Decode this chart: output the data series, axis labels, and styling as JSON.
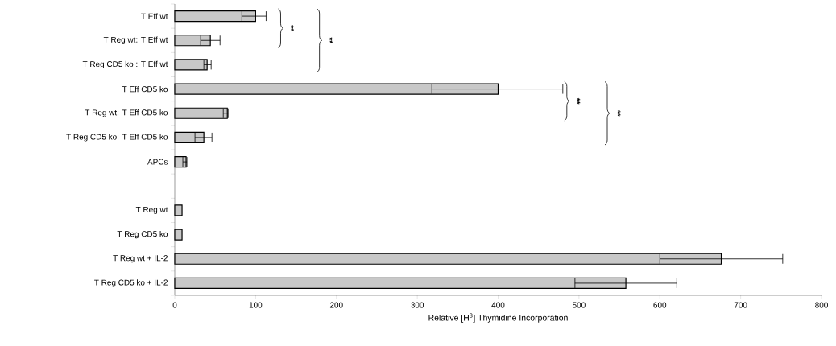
{
  "chart_data": {
    "type": "bar",
    "orientation": "horizontal",
    "xlabel": "Relative [H$^{3}$] Thymidine Incorporation",
    "categories": [
      "T Eff wt",
      "T Reg wt: T Eff wt",
      "T Reg CD5 ko : T Eff wt",
      "T Eff CD5 ko",
      "T Reg wt: T Eff CD5 ko",
      "T Reg CD5 ko: T Eff CD5 ko",
      "APCs",
      null,
      "T Reg wt",
      "T Reg CD5 ko",
      "T Reg wt + IL-2",
      "T Reg CD5 ko + IL-2"
    ],
    "values": [
      100,
      44,
      40,
      400,
      65,
      36,
      14,
      null,
      9,
      9,
      676,
      558
    ],
    "errors": [
      [
        83,
        113
      ],
      [
        32,
        56
      ],
      [
        36,
        45
      ],
      [
        318,
        480
      ],
      [
        60,
        66
      ],
      [
        25,
        46
      ],
      [
        10,
        15
      ],
      null,
      null,
      null,
      [
        600,
        752
      ],
      [
        495,
        621
      ]
    ],
    "color": "#c8c8c8",
    "xlim": [
      0,
      800
    ],
    "xticks": [
      0,
      100,
      200,
      300,
      400,
      500,
      600,
      700,
      800
    ],
    "grid": false,
    "annotations": [
      "**",
      "**",
      "**",
      "**"
    ]
  }
}
